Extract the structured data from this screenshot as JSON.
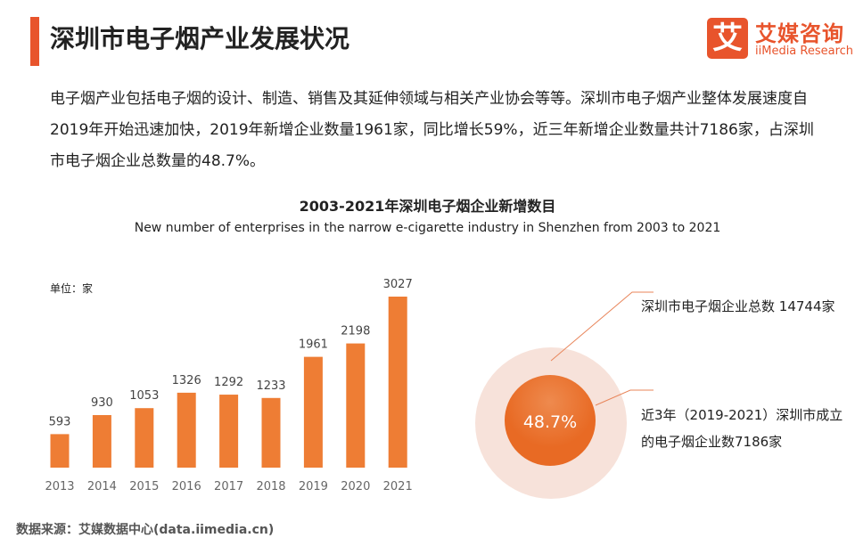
{
  "title": "深圳市电子烟产业发展状况",
  "logo": {
    "icon": "艾",
    "cn": "艾媒咨询",
    "en": "iiMedia Research"
  },
  "paragraph": "电子烟产业包括电子烟的设计、制造、销售及其延伸领域与相关产业协会等等。深圳市电子烟产业整体发展速度自2019年开始迅速加快，2019年新增企业数量1961家，同比增长59%，近三年新增企业数量共计7186家，占深圳市电子烟企业总数量的48.7%。",
  "source": "数据来源：艾媒数据中心(data.iimedia.cn)",
  "colors": {
    "accent": "#e8542c",
    "bar": "#ee7d34",
    "outer_circle": "#f7e2da",
    "inner_circle": "#e86a24"
  },
  "chart_data": [
    {
      "type": "bar",
      "title": "2003-2021年深圳电子烟企业新增数目",
      "subtitle": "New number of enterprises in the narrow e-cigarette industry in Shenzhen from 2003 to 2021",
      "unit_label": "单位：家",
      "categories": [
        "2013",
        "2014",
        "2015",
        "2016",
        "2017",
        "2018",
        "2019",
        "2020",
        "2021"
      ],
      "values": [
        593,
        930,
        1053,
        1326,
        1292,
        1233,
        1961,
        2198,
        3027
      ],
      "ylim": [
        0,
        3027
      ],
      "grid": false
    },
    {
      "type": "pie",
      "center_label": "48.7%",
      "share": 48.7,
      "labels": [
        "深圳市电子烟企业总数 14744家",
        "近3年（2019-2021）深圳市成立",
        "的电子烟企业数7186家"
      ]
    }
  ]
}
